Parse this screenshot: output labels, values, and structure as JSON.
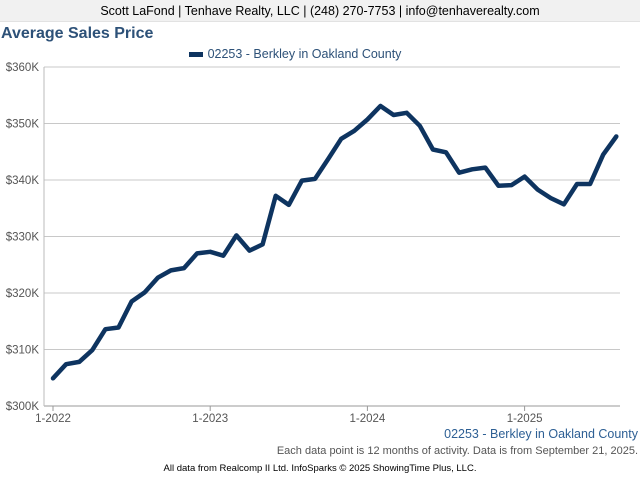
{
  "header": {
    "agent_line": "Scott LaFond | Tenhave Realty, LLC | (248) 270-7753 | info@tenhaverealty.com"
  },
  "chart_data": {
    "type": "line",
    "title": "Average Sales Price",
    "xlabel": "",
    "ylabel": "",
    "ylim": [
      300000,
      360000
    ],
    "y_ticks": [
      300000,
      310000,
      320000,
      330000,
      340000,
      350000,
      360000
    ],
    "y_tick_labels": [
      "$300K",
      "$310K",
      "$320K",
      "$330K",
      "$340K",
      "$350K",
      "$360K"
    ],
    "x_tick_labels": [
      "1-2022",
      "1-2023",
      "1-2024",
      "1-2025"
    ],
    "x_tick_indices": [
      0,
      12,
      24,
      36
    ],
    "grid": true,
    "legend_position": "top-center",
    "series": [
      {
        "name": "02253 - Berkley in Oakland County",
        "color": "#0e3460",
        "values": [
          304900,
          307400,
          307800,
          309900,
          313600,
          313900,
          318500,
          320100,
          322700,
          324000,
          324400,
          327000,
          327300,
          326600,
          330200,
          327500,
          328600,
          337200,
          335600,
          339900,
          340200,
          343700,
          347300,
          348700,
          350700,
          353100,
          351500,
          351900,
          349600,
          345400,
          344900,
          341300,
          341900,
          342200,
          339000,
          339100,
          340600,
          338300,
          336800,
          335700,
          339300,
          339300,
          344500,
          347700
        ]
      }
    ]
  },
  "source_label": "02253 - Berkley in Oakland County",
  "data_note": "Each data point is 12 months of activity. Data is from September 21, 2025.",
  "footer": {
    "credit": "All data from Realcomp II Ltd. InfoSparks © 2025 ShowingTime Plus, LLC."
  }
}
